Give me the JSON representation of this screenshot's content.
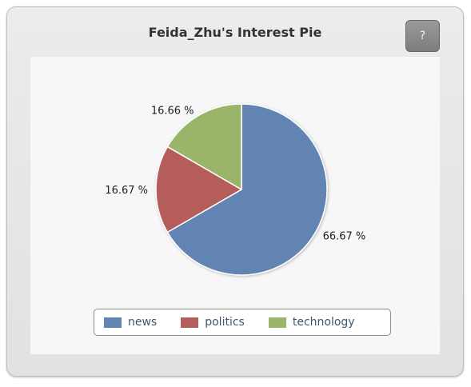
{
  "widget": {
    "title": "Feida_Zhu's Interest Pie",
    "help_label": "?"
  },
  "chart_data": {
    "type": "pie",
    "labels": [
      "news",
      "politics",
      "technology"
    ],
    "values": [
      66.67,
      16.67,
      16.66
    ],
    "data_labels": [
      "66.67 %",
      "16.67 %",
      "16.66 %"
    ],
    "colors": [
      "#6284b3",
      "#b55d5a",
      "#9ab46a"
    ],
    "start_angle_deg": 0,
    "direction": "clockwise",
    "legend_position": "bottom",
    "title": "Feida_Zhu's Interest Pie"
  },
  "legend": {
    "items": [
      {
        "label": "news",
        "color": "#6284b3"
      },
      {
        "label": "politics",
        "color": "#b55d5a"
      },
      {
        "label": "technology",
        "color": "#9ab46a"
      }
    ]
  }
}
